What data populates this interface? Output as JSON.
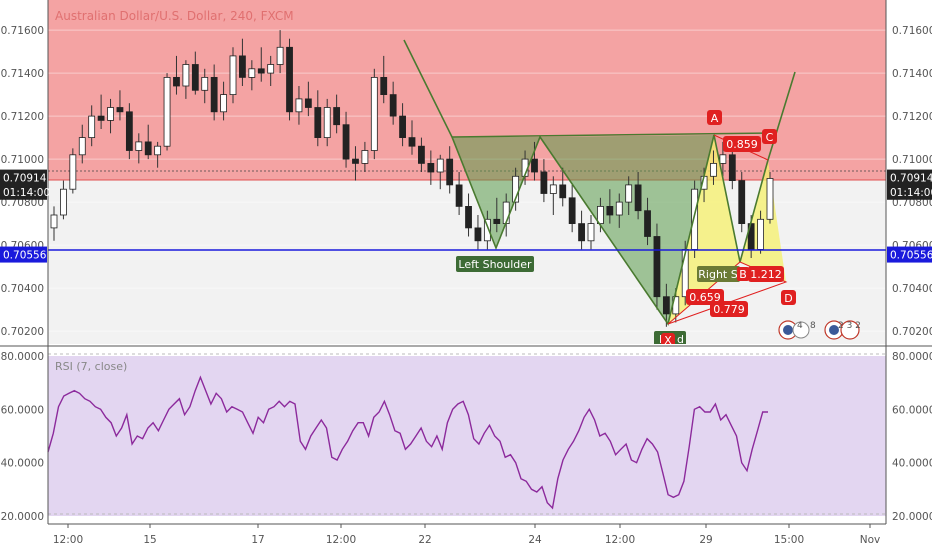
{
  "chart_data": [
    {
      "type": "candlestick",
      "title": "Australian Dollar/U.S. Dollar, 240, FXCM",
      "y_ticks": [
        "0.71600",
        "0.71400",
        "0.71200",
        "0.71000",
        "0.70800",
        "0.70600",
        "0.70400",
        "0.70200"
      ],
      "ylim": [
        0.7014,
        0.7174
      ],
      "x_ticks": [
        "12:00",
        "15",
        "17",
        "12:00",
        "22",
        "24",
        "12:00",
        "29",
        "15:00",
        "Nov"
      ],
      "price_tags": [
        {
          "label": "0.70914",
          "value": 0.70914,
          "bg": "#222222"
        },
        {
          "label": "01:14:00",
          "value": 0.70848,
          "bg": "#222222"
        },
        {
          "label": "0.70556",
          "value": 0.70556,
          "bg": "#1a1adc"
        }
      ],
      "zones": {
        "upper_color": "#f4a3a3",
        "upper_from": 0.70865,
        "line_color": "#e05050"
      },
      "horizontal_line": {
        "value": 0.70556,
        "color": "#1a1adc"
      },
      "candles": [
        [
          0.7068,
          0.7078,
          0.7062,
          0.7074
        ],
        [
          0.7074,
          0.709,
          0.7072,
          0.7086
        ],
        [
          0.7086,
          0.7105,
          0.7084,
          0.7102
        ],
        [
          0.7102,
          0.7116,
          0.7098,
          0.711
        ],
        [
          0.711,
          0.7125,
          0.7106,
          0.712
        ],
        [
          0.712,
          0.713,
          0.7114,
          0.7118
        ],
        [
          0.7118,
          0.7128,
          0.7112,
          0.7124
        ],
        [
          0.7124,
          0.7132,
          0.7118,
          0.7122
        ],
        [
          0.7122,
          0.7126,
          0.71,
          0.7104
        ],
        [
          0.7104,
          0.7112,
          0.7098,
          0.7108
        ],
        [
          0.7108,
          0.7116,
          0.71,
          0.7102
        ],
        [
          0.7102,
          0.7108,
          0.7096,
          0.7106
        ],
        [
          0.7106,
          0.714,
          0.7104,
          0.7138
        ],
        [
          0.7138,
          0.7148,
          0.713,
          0.7134
        ],
        [
          0.7134,
          0.7146,
          0.7128,
          0.7144
        ],
        [
          0.7144,
          0.715,
          0.713,
          0.7132
        ],
        [
          0.7132,
          0.7142,
          0.7126,
          0.7138
        ],
        [
          0.7138,
          0.7144,
          0.7118,
          0.7122
        ],
        [
          0.7122,
          0.7136,
          0.7118,
          0.713
        ],
        [
          0.713,
          0.7152,
          0.7126,
          0.7148
        ],
        [
          0.7148,
          0.7156,
          0.7134,
          0.7138
        ],
        [
          0.7138,
          0.7146,
          0.7132,
          0.7142
        ],
        [
          0.7142,
          0.7152,
          0.7136,
          0.714
        ],
        [
          0.714,
          0.7148,
          0.7134,
          0.7144
        ],
        [
          0.7144,
          0.716,
          0.714,
          0.7152
        ],
        [
          0.7152,
          0.7156,
          0.7118,
          0.7122
        ],
        [
          0.7122,
          0.7134,
          0.7116,
          0.7128
        ],
        [
          0.7128,
          0.7136,
          0.712,
          0.7124
        ],
        [
          0.7124,
          0.7132,
          0.7106,
          0.711
        ],
        [
          0.711,
          0.7128,
          0.7106,
          0.7124
        ],
        [
          0.7124,
          0.713,
          0.7112,
          0.7116
        ],
        [
          0.7116,
          0.7122,
          0.7096,
          0.71
        ],
        [
          0.71,
          0.7106,
          0.709,
          0.7098
        ],
        [
          0.7098,
          0.7108,
          0.7094,
          0.7104
        ],
        [
          0.7104,
          0.7142,
          0.71,
          0.7138
        ],
        [
          0.7138,
          0.7148,
          0.7126,
          0.713
        ],
        [
          0.713,
          0.7136,
          0.7116,
          0.712
        ],
        [
          0.712,
          0.7126,
          0.7106,
          0.711
        ],
        [
          0.711,
          0.7118,
          0.7102,
          0.7106
        ],
        [
          0.7106,
          0.711,
          0.7094,
          0.7098
        ],
        [
          0.7098,
          0.7104,
          0.7088,
          0.7094
        ],
        [
          0.7094,
          0.7102,
          0.7086,
          0.71
        ],
        [
          0.71,
          0.7106,
          0.7084,
          0.7088
        ],
        [
          0.7088,
          0.7094,
          0.7074,
          0.7078
        ],
        [
          0.7078,
          0.7084,
          0.7064,
          0.7068
        ],
        [
          0.7068,
          0.7074,
          0.7058,
          0.7062
        ],
        [
          0.7062,
          0.7076,
          0.7058,
          0.7072
        ],
        [
          0.7072,
          0.7082,
          0.7066,
          0.707
        ],
        [
          0.707,
          0.7084,
          0.7064,
          0.708
        ],
        [
          0.708,
          0.7096,
          0.7076,
          0.7092
        ],
        [
          0.7092,
          0.7104,
          0.7088,
          0.71
        ],
        [
          0.71,
          0.7108,
          0.709,
          0.7094
        ],
        [
          0.7094,
          0.71,
          0.708,
          0.7084
        ],
        [
          0.7084,
          0.7092,
          0.7074,
          0.7088
        ],
        [
          0.7088,
          0.7096,
          0.7078,
          0.7082
        ],
        [
          0.7082,
          0.7088,
          0.7066,
          0.707
        ],
        [
          0.707,
          0.7076,
          0.7058,
          0.7062
        ],
        [
          0.7062,
          0.7074,
          0.7058,
          0.707
        ],
        [
          0.707,
          0.7082,
          0.7066,
          0.7078
        ],
        [
          0.7078,
          0.7086,
          0.707,
          0.7074
        ],
        [
          0.7074,
          0.7084,
          0.7068,
          0.708
        ],
        [
          0.708,
          0.7092,
          0.7074,
          0.7088
        ],
        [
          0.7088,
          0.7094,
          0.7072,
          0.7076
        ],
        [
          0.7076,
          0.7082,
          0.706,
          0.7064
        ],
        [
          0.7064,
          0.707,
          0.703,
          0.7036
        ],
        [
          0.7036,
          0.7042,
          0.7022,
          0.7028
        ],
        [
          0.7028,
          0.704,
          0.7024,
          0.7036
        ],
        [
          0.7036,
          0.7062,
          0.7032,
          0.7058
        ],
        [
          0.7058,
          0.709,
          0.7054,
          0.7086
        ],
        [
          0.7086,
          0.7096,
          0.708,
          0.7092
        ],
        [
          0.7092,
          0.7104,
          0.7088,
          0.7098
        ],
        [
          0.7098,
          0.7108,
          0.7092,
          0.7102
        ],
        [
          0.7102,
          0.7106,
          0.7086,
          0.709
        ],
        [
          0.709,
          0.7094,
          0.7066,
          0.707
        ],
        [
          0.707,
          0.7074,
          0.7054,
          0.7058
        ],
        [
          0.7058,
          0.7076,
          0.7056,
          0.7072
        ],
        [
          0.7072,
          0.7094,
          0.707,
          0.7091
        ]
      ]
    },
    {
      "type": "line",
      "title": "RSI (7, close)",
      "y_ticks": [
        "80.0000",
        "60.0000",
        "40.0000",
        "20.0000"
      ],
      "ylim": [
        17.0,
        83.0
      ],
      "band": [
        20,
        80
      ],
      "band_color": "#e3d6f1",
      "line_color": "#8c2a9c",
      "values": [
        44,
        51,
        61,
        65,
        66,
        67,
        66,
        64,
        63,
        61,
        60,
        57,
        55,
        50,
        53,
        58,
        47,
        50,
        49,
        53,
        55,
        52,
        56,
        60,
        62,
        64,
        58,
        61,
        67,
        72,
        67,
        62,
        66,
        64,
        59,
        61,
        60,
        59,
        55,
        51,
        57,
        55,
        60,
        61,
        63,
        61,
        63,
        62,
        48,
        45,
        50,
        53,
        56,
        53,
        42,
        41,
        45,
        48,
        52,
        55,
        55,
        50,
        57,
        59,
        63,
        58,
        52,
        51,
        45,
        47,
        50,
        53,
        48,
        46,
        50,
        45,
        55,
        60,
        62,
        63,
        58,
        49,
        47,
        51,
        54,
        50,
        48,
        42,
        43,
        40,
        34,
        33,
        30,
        29,
        31,
        25,
        23,
        34,
        41,
        45,
        48,
        52,
        57,
        60,
        56,
        50,
        51,
        48,
        43,
        45,
        47,
        41,
        40,
        45,
        49,
        47,
        44,
        36,
        28,
        27,
        28,
        33,
        46,
        60,
        61,
        59,
        59,
        62,
        56,
        58,
        54,
        50,
        40,
        37,
        45,
        52,
        59,
        59
      ]
    }
  ],
  "annotations": {
    "pattern_labels": [
      {
        "text": "Left Shoulder",
        "color": "#3d6b35"
      },
      {
        "text": "Right S",
        "color": "#6b7a35"
      },
      {
        "text": "H",
        "color": "#3d6b35"
      },
      {
        "text": "d",
        "color": "#3d6b35"
      }
    ],
    "point_labels": [
      {
        "text": "A",
        "color": "#e02020"
      },
      {
        "text": "C",
        "color": "#e02020"
      },
      {
        "text": "D",
        "color": "#e02020"
      },
      {
        "text": "X",
        "color": "#e02020"
      },
      {
        "text": "B",
        "color": "#e02020"
      }
    ],
    "ratio_labels": [
      {
        "text": "0.859",
        "color": "#e02020"
      },
      {
        "text": "1.212",
        "color": "#e02020"
      },
      {
        "text": "0.659",
        "color": "#e02020"
      },
      {
        "text": "0.779",
        "color": "#e02020"
      }
    ],
    "event_badges": [
      {
        "text": "4",
        "sub": "8"
      },
      {
        "text": "2 3 2"
      }
    ]
  }
}
